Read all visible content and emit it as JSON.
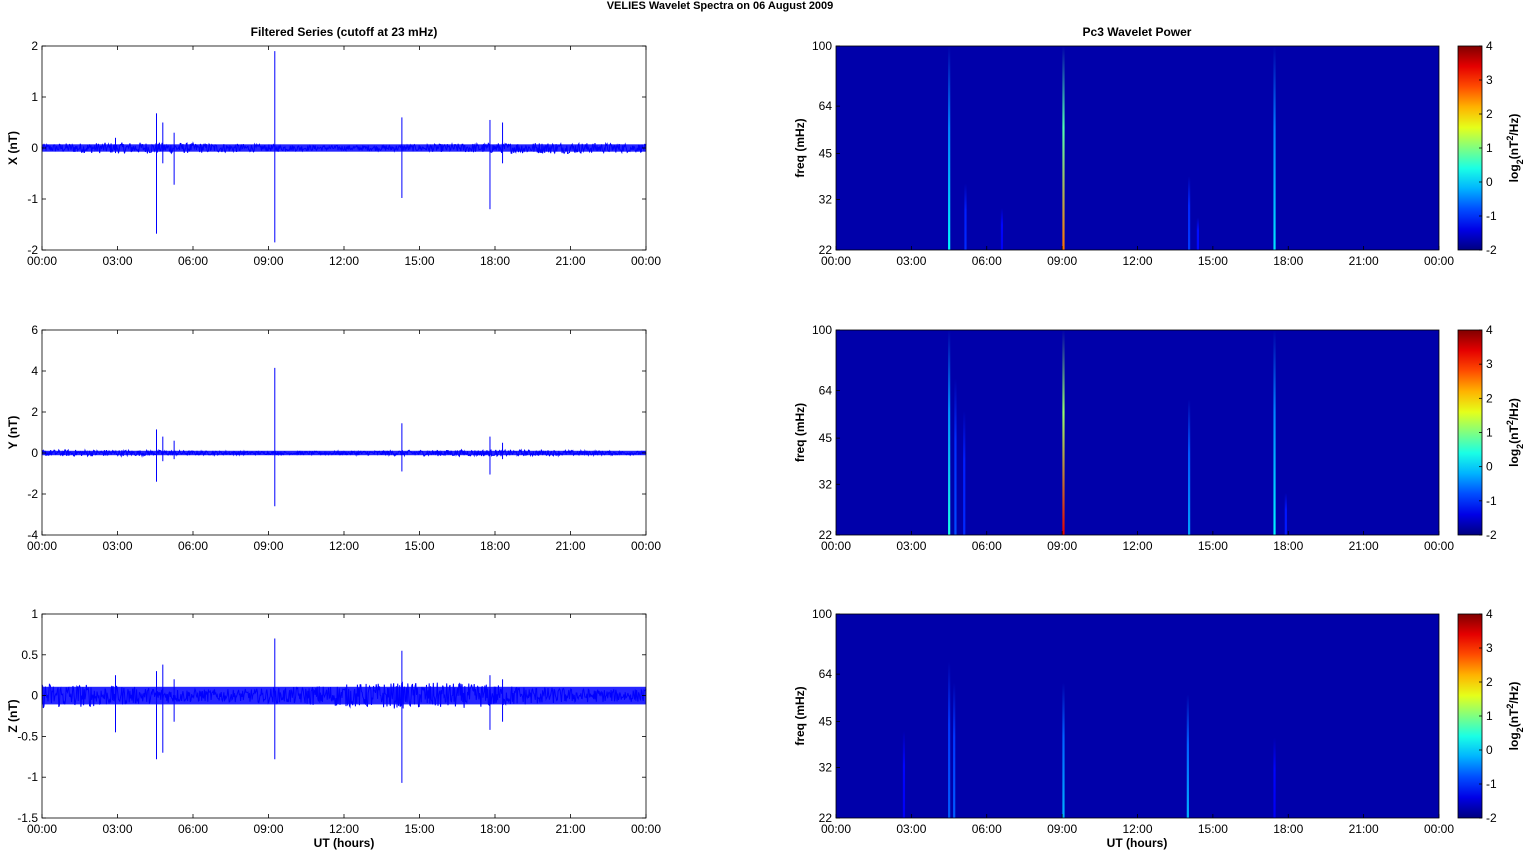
{
  "figure": {
    "suptitle": "VELIES Wavelet Spectra on 06 August    2009",
    "left_title": "Filtered Series (cutoff at 23 mHz)",
    "right_title": "Pc3 Wavelet Power",
    "xlabel": "UT (hours)",
    "colorbar_label_base": "log",
    "colorbar_label_sub": "2",
    "colorbar_label_rest_1": "(nT",
    "colorbar_label_sup": "2",
    "colorbar_label_rest_2": "/Hz)"
  },
  "colors": {
    "trace": "#0000ff",
    "spectrum_background": "#00008f",
    "colormap": "jet"
  },
  "chart_data": [
    {
      "type": "line",
      "component": "X",
      "ylabel": "X (nT)",
      "ylim": [
        -2,
        2
      ],
      "yticks": [
        2,
        1,
        0,
        -1,
        -2
      ],
      "xticks": [
        "00:00",
        "03:00",
        "06:00",
        "09:00",
        "12:00",
        "15:00",
        "18:00",
        "21:00",
        "00:00"
      ],
      "xlim_hours": [
        0,
        24
      ],
      "baseline_noise_amplitude": 0.08,
      "spikes": [
        {
          "t": 2.92,
          "max": 0.2,
          "min": -0.1
        },
        {
          "t": 4.55,
          "max": 0.68,
          "min": -1.68
        },
        {
          "t": 4.8,
          "max": 0.5,
          "min": -0.3
        },
        {
          "t": 5.25,
          "max": 0.3,
          "min": -0.72
        },
        {
          "t": 9.25,
          "max": 1.9,
          "min": -1.85
        },
        {
          "t": 14.3,
          "max": 0.6,
          "min": -0.98
        },
        {
          "t": 17.8,
          "max": 0.55,
          "min": -1.2
        },
        {
          "t": 18.3,
          "max": 0.5,
          "min": -0.3
        }
      ]
    },
    {
      "type": "line",
      "component": "Y",
      "ylabel": "Y (nT)",
      "ylim": [
        -4,
        6
      ],
      "yticks": [
        6,
        4,
        2,
        0,
        -2,
        -4
      ],
      "xticks": [
        "00:00",
        "03:00",
        "06:00",
        "09:00",
        "12:00",
        "15:00",
        "18:00",
        "21:00",
        "00:00"
      ],
      "xlim_hours": [
        0,
        24
      ],
      "baseline_noise_amplitude": 0.12,
      "spikes": [
        {
          "t": 4.55,
          "max": 1.15,
          "min": -1.4
        },
        {
          "t": 4.8,
          "max": 0.8,
          "min": -0.4
        },
        {
          "t": 5.25,
          "max": 0.6,
          "min": -0.3
        },
        {
          "t": 9.25,
          "max": 4.15,
          "min": -2.6
        },
        {
          "t": 14.3,
          "max": 1.45,
          "min": -0.9
        },
        {
          "t": 17.8,
          "max": 0.8,
          "min": -1.05
        },
        {
          "t": 18.3,
          "max": 0.5,
          "min": -0.3
        }
      ]
    },
    {
      "type": "line",
      "component": "Z",
      "ylabel": "Z (nT)",
      "ylim": [
        -1.5,
        1
      ],
      "yticks": [
        1,
        0.5,
        0,
        -0.5,
        -1,
        -1.5
      ],
      "xticks": [
        "00:00",
        "03:00",
        "06:00",
        "09:00",
        "12:00",
        "15:00",
        "18:00",
        "21:00",
        "00:00"
      ],
      "xlim_hours": [
        0,
        24
      ],
      "baseline_noise_amplitude": 0.12,
      "spikes": [
        {
          "t": 2.92,
          "max": 0.25,
          "min": -0.45
        },
        {
          "t": 4.55,
          "max": 0.3,
          "min": -0.78
        },
        {
          "t": 4.8,
          "max": 0.38,
          "min": -0.7
        },
        {
          "t": 5.25,
          "max": 0.2,
          "min": -0.32
        },
        {
          "t": 9.25,
          "max": 0.7,
          "min": -0.78
        },
        {
          "t": 14.3,
          "max": 0.55,
          "min": -1.07
        },
        {
          "t": 17.8,
          "max": 0.25,
          "min": -0.42
        },
        {
          "t": 18.3,
          "max": 0.2,
          "min": -0.32
        }
      ]
    },
    {
      "type": "heatmap",
      "component": "X",
      "ylabel": "freq (mHz)",
      "ytick_labels": [
        "100",
        "64",
        "45",
        "32",
        "22"
      ],
      "ylim_mHz": [
        22,
        100
      ],
      "yscale": "log",
      "xticks": [
        "00:00",
        "03:00",
        "06:00",
        "09:00",
        "12:00",
        "15:00",
        "18:00",
        "21:00",
        "00:00"
      ],
      "xlim_hours": [
        0,
        24
      ],
      "colorbar_ticks": [
        4,
        3,
        2,
        1,
        0,
        -1,
        -2
      ],
      "clim": [
        -2,
        4
      ],
      "background_level": -1.75,
      "events": [
        {
          "t": 4.5,
          "level": 0.2,
          "fmin": 22,
          "fmax": 100
        },
        {
          "t": 5.15,
          "level": -1.0,
          "fmin": 22,
          "fmax": 36
        },
        {
          "t": 6.6,
          "level": -1.3,
          "fmin": 22,
          "fmax": 30
        },
        {
          "t": 9.05,
          "level": 2.6,
          "fmin": 22,
          "fmax": 100
        },
        {
          "t": 14.05,
          "level": -0.9,
          "fmin": 22,
          "fmax": 38
        },
        {
          "t": 14.4,
          "level": -1.2,
          "fmin": 22,
          "fmax": 28
        },
        {
          "t": 17.45,
          "level": 0.1,
          "fmin": 22,
          "fmax": 100
        }
      ]
    },
    {
      "type": "heatmap",
      "component": "Y",
      "ylabel": "freq (mHz)",
      "ytick_labels": [
        "100",
        "64",
        "45",
        "32",
        "22"
      ],
      "ylim_mHz": [
        22,
        100
      ],
      "yscale": "log",
      "xticks": [
        "00:00",
        "03:00",
        "06:00",
        "09:00",
        "12:00",
        "15:00",
        "18:00",
        "21:00",
        "00:00"
      ],
      "xlim_hours": [
        0,
        24
      ],
      "colorbar_ticks": [
        4,
        3,
        2,
        1,
        0,
        -1,
        -2
      ],
      "clim": [
        -2,
        4
      ],
      "background_level": -1.75,
      "events": [
        {
          "t": 4.5,
          "level": 0.4,
          "fmin": 22,
          "fmax": 100
        },
        {
          "t": 4.75,
          "level": -0.8,
          "fmin": 22,
          "fmax": 70
        },
        {
          "t": 5.1,
          "level": -1.0,
          "fmin": 22,
          "fmax": 55
        },
        {
          "t": 9.05,
          "level": 3.4,
          "fmin": 22,
          "fmax": 100
        },
        {
          "t": 14.05,
          "level": -0.3,
          "fmin": 22,
          "fmax": 60
        },
        {
          "t": 17.45,
          "level": 0.2,
          "fmin": 22,
          "fmax": 100
        },
        {
          "t": 17.9,
          "level": -1.1,
          "fmin": 22,
          "fmax": 30
        }
      ]
    },
    {
      "type": "heatmap",
      "component": "Z",
      "ylabel": "freq (mHz)",
      "ytick_labels": [
        "100",
        "64",
        "45",
        "32",
        "22"
      ],
      "ylim_mHz": [
        22,
        100
      ],
      "yscale": "log",
      "xticks": [
        "00:00",
        "03:00",
        "06:00",
        "09:00",
        "12:00",
        "15:00",
        "18:00",
        "21:00",
        "00:00"
      ],
      "xlim_hours": [
        0,
        24
      ],
      "colorbar_ticks": [
        4,
        3,
        2,
        1,
        0,
        -1,
        -2
      ],
      "clim": [
        -2,
        4
      ],
      "background_level": -1.75,
      "events": [
        {
          "t": 2.7,
          "level": -1.3,
          "fmin": 22,
          "fmax": 42
        },
        {
          "t": 4.5,
          "level": -0.7,
          "fmin": 22,
          "fmax": 70
        },
        {
          "t": 4.7,
          "level": -0.7,
          "fmin": 22,
          "fmax": 60
        },
        {
          "t": 9.05,
          "level": -0.2,
          "fmin": 22,
          "fmax": 60
        },
        {
          "t": 14.0,
          "level": -0.2,
          "fmin": 22,
          "fmax": 55
        },
        {
          "t": 17.45,
          "level": -1.3,
          "fmin": 22,
          "fmax": 40
        }
      ]
    }
  ]
}
